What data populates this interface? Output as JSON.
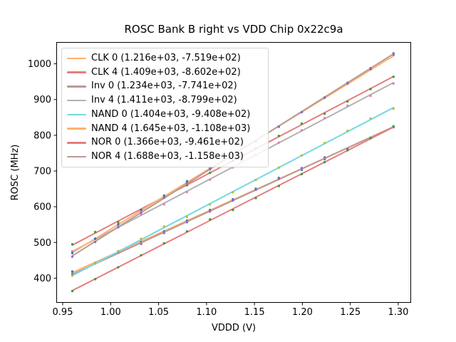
{
  "chart_data": {
    "type": "scatter",
    "title": "ROSC Bank B right vs VDD Chip 0x22c9a",
    "xlabel": "VDDD (V)",
    "ylabel": "ROSC (MHz)",
    "xlim": [
      0.9433,
      1.3134
    ],
    "ylim": [
      331,
      1061
    ],
    "x_ticks": [
      0.95,
      1.0,
      1.05,
      1.1,
      1.15,
      1.2,
      1.25,
      1.3
    ],
    "x_tick_labels": [
      "0.95",
      "1.00",
      "1.05",
      "1.10",
      "1.15",
      "1.20",
      "1.25",
      "1.30"
    ],
    "y_ticks": [
      400,
      500,
      600,
      700,
      800,
      900,
      1000
    ],
    "y_tick_labels": [
      "400",
      "500",
      "600",
      "700",
      "800",
      "900",
      "1000"
    ],
    "grid": false,
    "legend_position": "upper left",
    "x": [
      0.96,
      0.9839,
      1.0079,
      1.0318,
      1.0557,
      1.0796,
      1.1036,
      1.1275,
      1.1514,
      1.1754,
      1.1993,
      1.2232,
      1.2471,
      1.2711,
      1.295
    ],
    "series": [
      {
        "name": "CLK 0",
        "label": "CLK 0 (1.216e+03, -7.519e+02)",
        "slope": 1216,
        "intercept": -751.9,
        "line_color": "#ffb26e",
        "marker_color": "#1f77b4",
        "y": [
          415.5,
          444.5,
          473.7,
          502.8,
          531.8,
          560.9,
          590.1,
          619.1,
          648.2,
          677.4,
          706.4,
          735.5,
          764.6,
          793.8,
          822.8
        ]
      },
      {
        "name": "CLK 4",
        "label": "CLK 4 (1.409e+03, -8.602e+02)",
        "slope": 1409,
        "intercept": -860.2,
        "line_color": "#e67d7e",
        "marker_color": "#2ca02c",
        "y": [
          492.4,
          526.1,
          559.9,
          593.6,
          627.3,
          660.9,
          694.8,
          728.4,
          762.1,
          795.9,
          829.6,
          863.3,
          896.9,
          930.8,
          964.5
        ]
      },
      {
        "name": "Inv 0",
        "label": "Inv 0 (1.234e+03, -7.741e+02)",
        "slope": 1234,
        "intercept": -774.1,
        "line_color": "#ba9a93",
        "marker_color": "#9467bd",
        "y": [
          410.5,
          439.9,
          469.6,
          499.1,
          528.6,
          558.1,
          587.7,
          617.2,
          646.7,
          676.3,
          705.8,
          735.3,
          764.8,
          794.4,
          823.9
        ]
      },
      {
        "name": "Inv 4",
        "label": "Inv 4 (1.411e+03, -8.799e+02)",
        "slope": 1411,
        "intercept": -879.9,
        "line_color": "#b2b2b2",
        "marker_color": "#e377c2",
        "y": [
          474.7,
          508.4,
          542.2,
          575.9,
          609.7,
          643.4,
          677.3,
          711.0,
          744.7,
          778.6,
          812.3,
          846.0,
          879.7,
          913.6,
          947.3
        ]
      },
      {
        "name": "NAND 0",
        "label": "NAND 0 (1.404e+03, -9.408e+02)",
        "slope": 1404,
        "intercept": -940.8,
        "line_color": "#74d8e2",
        "marker_color": "#bcbd22",
        "y": [
          407.0,
          440.6,
          474.3,
          507.8,
          541.4,
          574.9,
          608.7,
          642.2,
          675.8,
          709.5,
          743.0,
          776.6,
          810.1,
          843.8,
          877.4
        ]
      },
      {
        "name": "NAND 4",
        "label": "NAND 4 (1.645e+03, -1.108e+03)",
        "slope": 1645,
        "intercept": -1108,
        "line_color": "#ffb26e",
        "marker_color": "#1f77b4",
        "y": [
          471.2,
          510.5,
          550.0,
          589.3,
          628.6,
          667.9,
          707.4,
          746.7,
          786.1,
          825.5,
          864.8,
          904.2,
          943.5,
          983.0,
          1022.3
        ]
      },
      {
        "name": "NOR 0",
        "label": "NOR 0 (1.366e+03, -9.461e+02)",
        "slope": 1366,
        "intercept": -946.1,
        "line_color": "#e67d7e",
        "marker_color": "#2ca02c",
        "y": [
          365.3,
          398.0,
          430.7,
          463.3,
          496.0,
          528.6,
          561.4,
          594.1,
          626.7,
          659.5,
          692.1,
          724.8,
          757.4,
          790.2,
          822.9
        ]
      },
      {
        "name": "NOR 4",
        "label": "NOR 4 (1.688e+03, -1.158e+03)",
        "slope": 1688,
        "intercept": -1158,
        "line_color": "#ba9a93",
        "marker_color": "#9467bd",
        "y": [
          462.5,
          502.8,
          543.3,
          583.7,
          624.0,
          664.4,
          704.9,
          745.2,
          785.6,
          826.1,
          866.4,
          906.8,
          947.1,
          987.6,
          1028.1
        ]
      }
    ]
  }
}
